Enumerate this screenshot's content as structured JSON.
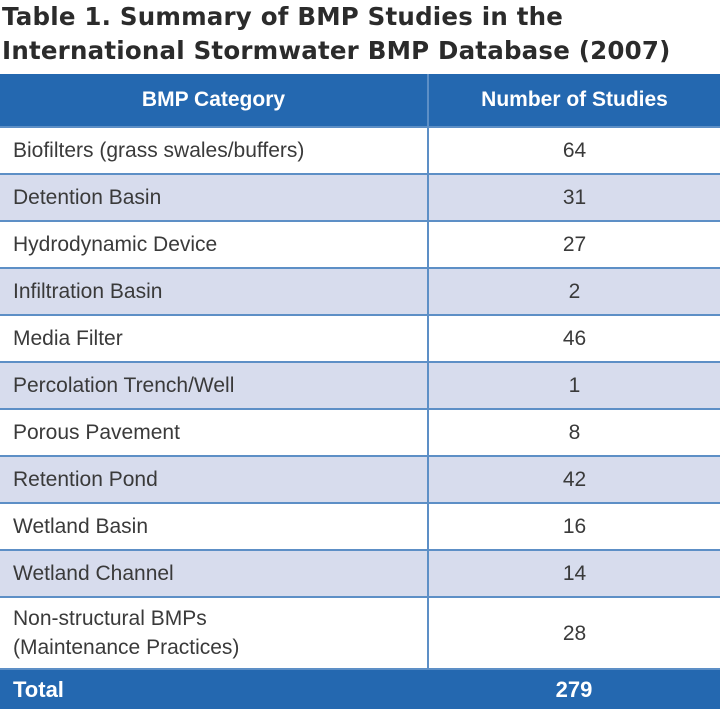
{
  "title": {
    "line1": "Table 1. Summary of BMP Studies in the",
    "line2": "International Stormwater BMP Database (2007)"
  },
  "table": {
    "headers": [
      "BMP Category",
      "Number of Studies"
    ],
    "rows": [
      {
        "category": "Biofilters (grass swales/buffers)",
        "count": "64"
      },
      {
        "category": "Detention Basin",
        "count": "31"
      },
      {
        "category": "Hydrodynamic Device",
        "count": "27"
      },
      {
        "category": "Infiltration Basin",
        "count": "2"
      },
      {
        "category": "Media Filter",
        "count": "46"
      },
      {
        "category": "Percolation Trench/Well",
        "count": "1"
      },
      {
        "category": "Porous Pavement",
        "count": "8"
      },
      {
        "category": "Retention Pond",
        "count": "42"
      },
      {
        "category": "Wetland Basin",
        "count": "16"
      },
      {
        "category": "Wetland Channel",
        "count": "14"
      },
      {
        "category": "Non-structural BMPs",
        "category_line2": "(Maintenance Practices)",
        "count": "28"
      }
    ],
    "total_label": "Total",
    "total_value": "279"
  },
  "colors": {
    "header_bg": "#2468b0",
    "row_alt_bg": "#d7dced",
    "divider": "#5d8fc6"
  }
}
